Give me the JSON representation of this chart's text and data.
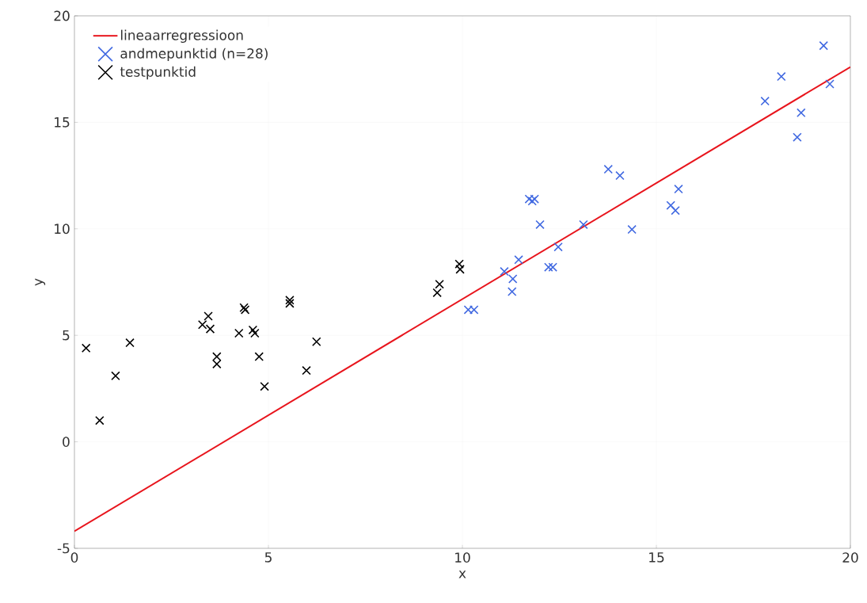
{
  "chart_data": {
    "type": "scatter",
    "xlabel": "x",
    "ylabel": "y",
    "xlim": [
      0,
      20
    ],
    "ylim": [
      -5,
      20
    ],
    "xticks": [
      0,
      5,
      10,
      15,
      20
    ],
    "yticks": [
      -5,
      0,
      5,
      10,
      15,
      20
    ],
    "grid": true,
    "legend": "top left",
    "series": [
      {
        "name": "lineaarregressioon",
        "type": "line",
        "color": "#e8141c",
        "marker": "none",
        "line_style": "solid",
        "x": [
          0,
          20
        ],
        "values": [
          -4.2,
          17.6
        ]
      },
      {
        "name": "andmepunktid (n=28)",
        "color": "#4169e1",
        "marker": "cross",
        "x": [
          10.15,
          10.3,
          11.08,
          11.3,
          11.28,
          11.45,
          11.72,
          11.86,
          12.0,
          12.22,
          12.33,
          12.47,
          13.12,
          13.76,
          14.06,
          14.37,
          15.57,
          15.37,
          15.49,
          17.8,
          18.22,
          18.73,
          18.63,
          19.31,
          19.47,
          11.8
        ],
        "values": [
          6.2,
          6.2,
          8.0,
          7.65,
          7.05,
          8.55,
          11.4,
          11.4,
          10.2,
          8.2,
          8.2,
          9.15,
          10.2,
          12.8,
          12.5,
          9.97,
          11.87,
          11.1,
          10.86,
          16.0,
          17.15,
          15.45,
          14.3,
          18.6,
          16.8,
          11.3
        ]
      },
      {
        "name": "testpunktid",
        "color": "#000000",
        "marker": "cross",
        "x": [
          0.3,
          0.65,
          1.06,
          1.43,
          3.3,
          3.45,
          3.5,
          3.67,
          3.67,
          4.24,
          4.37,
          4.4,
          4.6,
          4.65,
          4.76,
          4.9,
          5.55,
          5.55,
          5.98,
          6.24,
          9.35,
          9.41,
          9.92,
          9.94
        ],
        "values": [
          4.4,
          1.0,
          3.1,
          4.65,
          5.5,
          5.9,
          5.3,
          4.0,
          3.65,
          5.1,
          6.3,
          6.2,
          5.25,
          5.1,
          4.0,
          2.6,
          6.65,
          6.5,
          3.35,
          4.7,
          7.0,
          7.4,
          8.35,
          8.1
        ]
      }
    ]
  }
}
